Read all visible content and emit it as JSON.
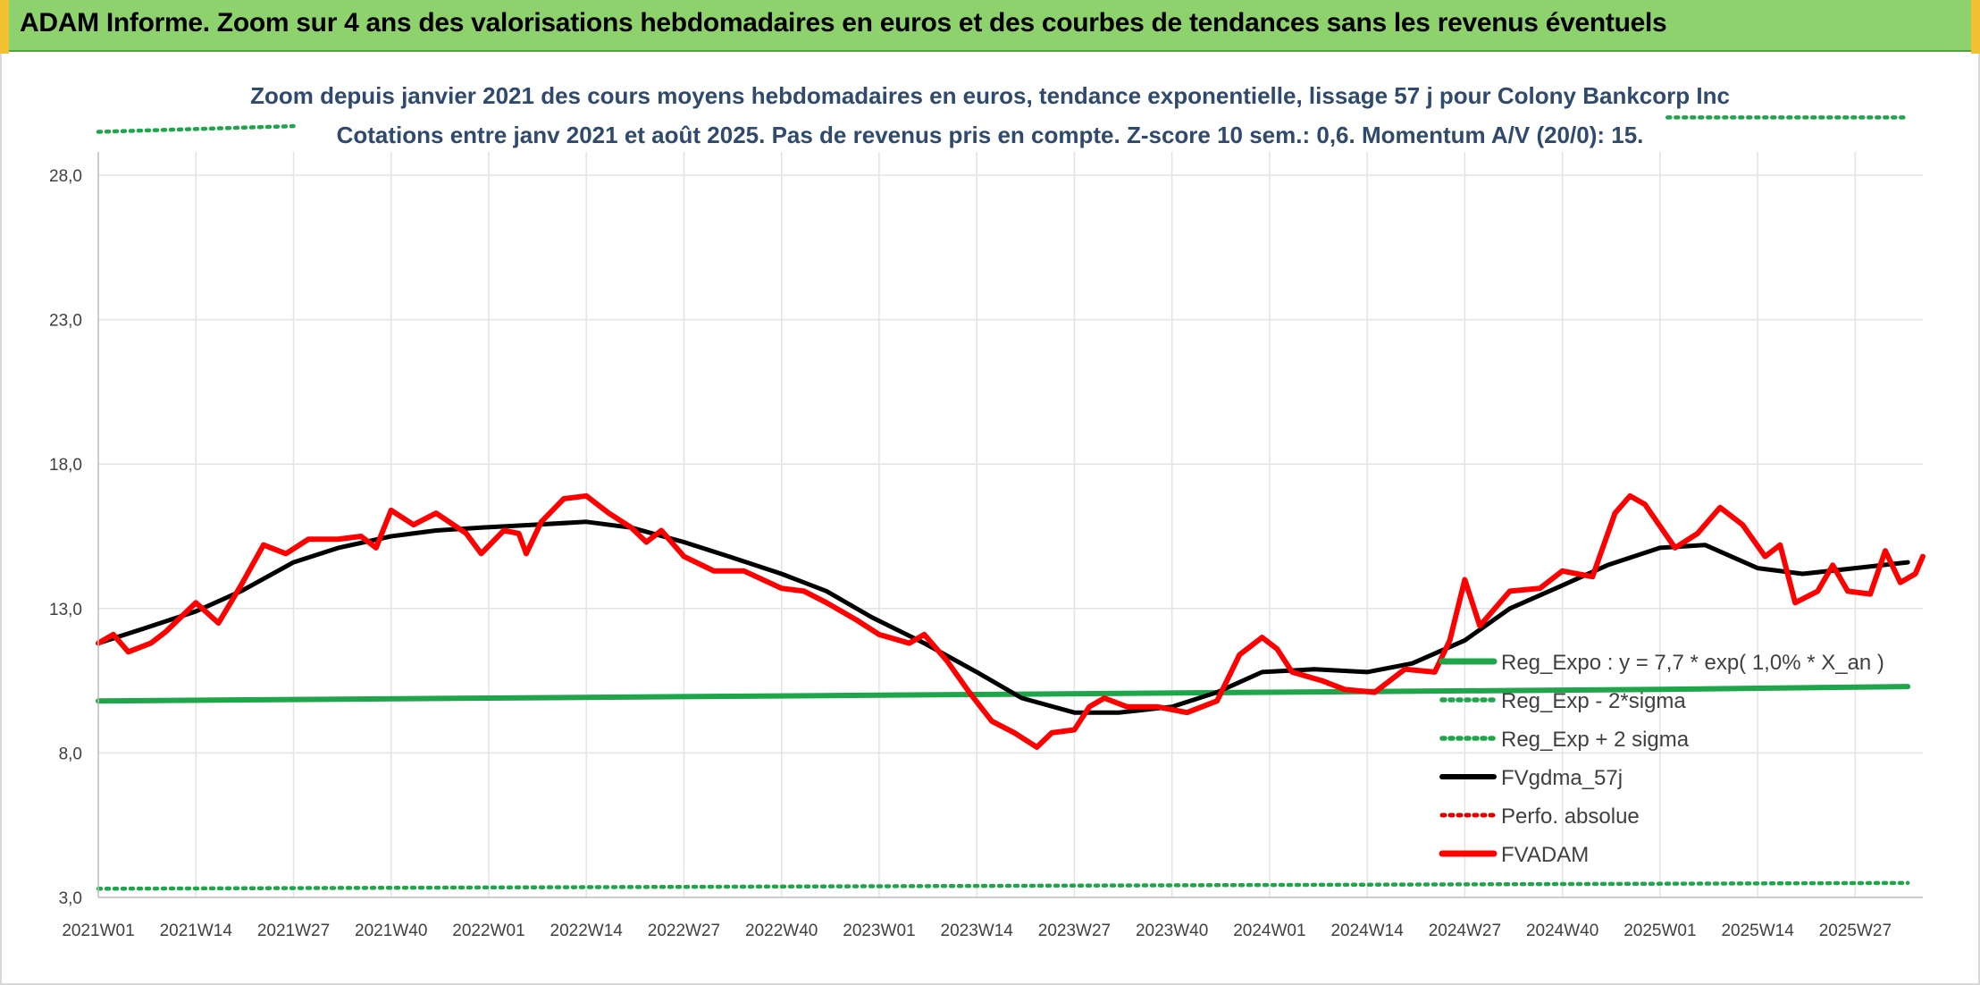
{
  "header": {
    "title": "ADAM Informe. Zoom sur 4 ans des valorisations hebdomadaires en euros et des courbes de tendances sans les revenus éventuels"
  },
  "chart_data": {
    "type": "line",
    "title": "Zoom depuis janvier 2021 des cours moyens hebdomadaires en euros, tendance exponentielle, lissage 57 j pour Colony Bankcorp Inc",
    "subtitle": "Cotations entre janv 2021 et août 2025. Pas de revenus pris en compte. Z-score 10 sem.: 0,6. Momentum A/V (20/0): 15.",
    "xlabel": "",
    "ylabel": "",
    "ylim": [
      3.0,
      30.5
    ],
    "y_ticks": [
      "3,0",
      "8,0",
      "13,0",
      "18,0",
      "23,0",
      "28,0"
    ],
    "x_ticks": [
      "2021W01",
      "2021W14",
      "2021W27",
      "2021W40",
      "2022W01",
      "2022W14",
      "2022W27",
      "2022W40",
      "2023W01",
      "2023W14",
      "2023W27",
      "2023W40",
      "2024W01",
      "2024W14",
      "2024W27",
      "2024W40",
      "2025W01",
      "2025W14",
      "2025W27"
    ],
    "grid": true,
    "legend_position": "right",
    "colors": {
      "reg_expo": "#1fa64a",
      "sigma": "#1fa64a",
      "fvgdma": "#000000",
      "perfo": "#e00000",
      "fvadam": "#ff0000"
    },
    "series": [
      {
        "name": "Reg_Expo : y = 7,7 * exp( 1,0% *  X_an )",
        "style": "solid",
        "points": [
          [
            "2021W01",
            9.8
          ],
          [
            "2022W01",
            9.9
          ],
          [
            "2023W01",
            10.0
          ],
          [
            "2024W01",
            10.1
          ],
          [
            "2025W01",
            10.2
          ],
          [
            "2025W34",
            10.3
          ]
        ]
      },
      {
        "name": "Reg_Exp - 2*sigma",
        "style": "dotted",
        "points": [
          [
            "2021W01",
            3.3
          ],
          [
            "2025W34",
            3.5
          ]
        ]
      },
      {
        "name": "Reg_Exp + 2 sigma",
        "style": "dotted",
        "segments": [
          [
            [
              "2021W01",
              29.5
            ],
            [
              "2021W27",
              29.7
            ]
          ],
          [
            [
              "2025W02",
              30.0
            ],
            [
              "2025W34",
              30.0
            ]
          ]
        ]
      },
      {
        "name": "FVgdma_57j",
        "style": "solid",
        "points": [
          [
            "2021W01",
            11.8
          ],
          [
            "2021W07",
            12.3
          ],
          [
            "2021W14",
            12.9
          ],
          [
            "2021W20",
            13.6
          ],
          [
            "2021W27",
            14.6
          ],
          [
            "2021W33",
            15.1
          ],
          [
            "2021W40",
            15.5
          ],
          [
            "2021W46",
            15.7
          ],
          [
            "2021W52",
            15.8
          ],
          [
            "2022W07",
            15.9
          ],
          [
            "2022W14",
            16.0
          ],
          [
            "2022W20",
            15.8
          ],
          [
            "2022W27",
            15.3
          ],
          [
            "2022W33",
            14.8
          ],
          [
            "2022W40",
            14.2
          ],
          [
            "2022W46",
            13.6
          ],
          [
            "2022W52",
            12.7
          ],
          [
            "2023W07",
            11.8
          ],
          [
            "2023W14",
            10.8
          ],
          [
            "2023W20",
            9.9
          ],
          [
            "2023W27",
            9.4
          ],
          [
            "2023W33",
            9.4
          ],
          [
            "2023W40",
            9.6
          ],
          [
            "2023W46",
            10.1
          ],
          [
            "2023W52",
            10.8
          ],
          [
            "2024W07",
            10.9
          ],
          [
            "2024W14",
            10.8
          ],
          [
            "2024W20",
            11.1
          ],
          [
            "2024W27",
            11.9
          ],
          [
            "2024W33",
            13.0
          ],
          [
            "2024W40",
            13.8
          ],
          [
            "2024W46",
            14.5
          ],
          [
            "2025W01",
            15.1
          ],
          [
            "2025W07",
            15.2
          ],
          [
            "2025W14",
            14.4
          ],
          [
            "2025W20",
            14.2
          ],
          [
            "2025W27",
            14.4
          ],
          [
            "2025W34",
            14.6
          ]
        ]
      },
      {
        "name": "Perfo. absolue",
        "style": "dotted",
        "points": []
      },
      {
        "name": "FVADAM",
        "style": "solid",
        "points": [
          [
            "2021W01",
            11.8
          ],
          [
            "2021W03",
            12.1
          ],
          [
            "2021W05",
            11.5
          ],
          [
            "2021W08",
            11.8
          ],
          [
            "2021W10",
            12.2
          ],
          [
            "2021W14",
            13.2
          ],
          [
            "2021W17",
            12.5
          ],
          [
            "2021W20",
            13.8
          ],
          [
            "2021W23",
            15.2
          ],
          [
            "2021W26",
            14.9
          ],
          [
            "2021W29",
            15.4
          ],
          [
            "2021W33",
            15.4
          ],
          [
            "2021W36",
            15.5
          ],
          [
            "2021W38",
            15.1
          ],
          [
            "2021W40",
            16.4
          ],
          [
            "2021W43",
            15.9
          ],
          [
            "2021W46",
            16.3
          ],
          [
            "2021W50",
            15.6
          ],
          [
            "2021W52",
            14.9
          ],
          [
            "2022W03",
            15.7
          ],
          [
            "2022W05",
            15.6
          ],
          [
            "2022W06",
            14.9
          ],
          [
            "2022W08",
            16.0
          ],
          [
            "2022W11",
            16.8
          ],
          [
            "2022W14",
            16.9
          ],
          [
            "2022W17",
            16.3
          ],
          [
            "2022W20",
            15.8
          ],
          [
            "2022W22",
            15.3
          ],
          [
            "2022W24",
            15.7
          ],
          [
            "2022W27",
            14.8
          ],
          [
            "2022W31",
            14.3
          ],
          [
            "2022W35",
            14.3
          ],
          [
            "2022W40",
            13.7
          ],
          [
            "2022W43",
            13.6
          ],
          [
            "2022W46",
            13.2
          ],
          [
            "2022W50",
            12.6
          ],
          [
            "2023W01",
            12.1
          ],
          [
            "2023W05",
            11.8
          ],
          [
            "2023W07",
            12.1
          ],
          [
            "2023W10",
            11.2
          ],
          [
            "2023W13",
            10.1
          ],
          [
            "2023W16",
            9.1
          ],
          [
            "2023W19",
            8.7
          ],
          [
            "2023W22",
            8.2
          ],
          [
            "2023W24",
            8.7
          ],
          [
            "2023W27",
            8.8
          ],
          [
            "2023W29",
            9.6
          ],
          [
            "2023W31",
            9.9
          ],
          [
            "2023W34",
            9.6
          ],
          [
            "2023W38",
            9.6
          ],
          [
            "2023W42",
            9.4
          ],
          [
            "2023W46",
            9.8
          ],
          [
            "2023W49",
            11.4
          ],
          [
            "2023W52",
            12.0
          ],
          [
            "2024W02",
            11.6
          ],
          [
            "2024W04",
            10.8
          ],
          [
            "2024W08",
            10.5
          ],
          [
            "2024W11",
            10.2
          ],
          [
            "2024W15",
            10.1
          ],
          [
            "2024W19",
            10.9
          ],
          [
            "2024W23",
            10.8
          ],
          [
            "2024W25",
            11.9
          ],
          [
            "2024W27",
            14.0
          ],
          [
            "2024W29",
            12.4
          ],
          [
            "2024W33",
            13.6
          ],
          [
            "2024W37",
            13.7
          ],
          [
            "2024W40",
            14.3
          ],
          [
            "2024W44",
            14.1
          ],
          [
            "2024W47",
            16.3
          ],
          [
            "2024W49",
            16.9
          ],
          [
            "2024W51",
            16.6
          ],
          [
            "2025W03",
            15.1
          ],
          [
            "2025W06",
            15.6
          ],
          [
            "2025W09",
            16.5
          ],
          [
            "2025W12",
            15.9
          ],
          [
            "2025W15",
            14.8
          ],
          [
            "2025W17",
            15.2
          ],
          [
            "2025W19",
            13.2
          ],
          [
            "2025W22",
            13.6
          ],
          [
            "2025W24",
            14.5
          ],
          [
            "2025W26",
            13.6
          ],
          [
            "2025W29",
            13.5
          ],
          [
            "2025W31",
            15.0
          ],
          [
            "2025W33",
            13.9
          ],
          [
            "2025W35",
            14.2
          ],
          [
            "2025W36",
            14.8
          ]
        ]
      }
    ]
  }
}
